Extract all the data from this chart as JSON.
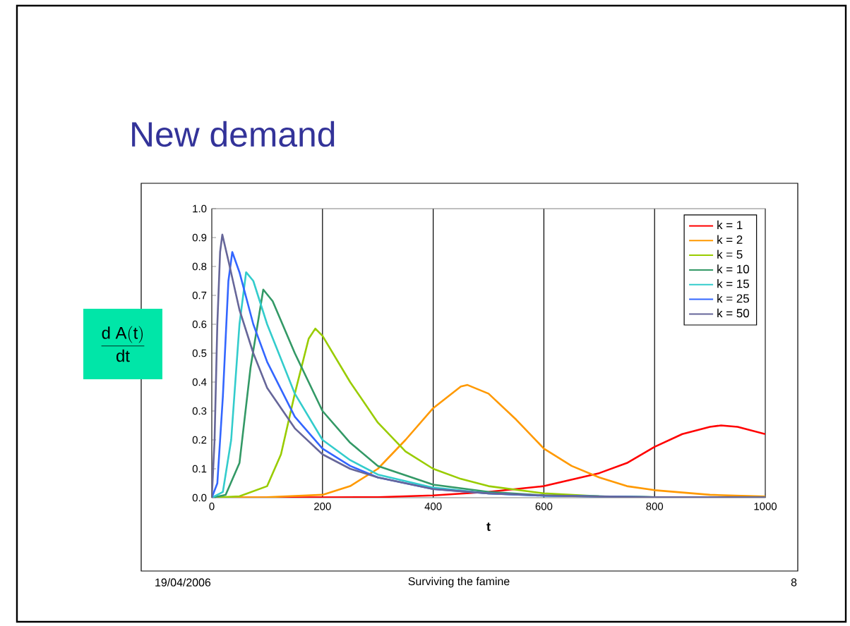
{
  "chart_data": {
    "type": "line",
    "title": "New demand",
    "xlabel": "t",
    "ylabel": "\\frac{\\mathrm{d\\;A(t)}}{\\mathrm{dt}}",
    "annotations": [
      "19/04/2006",
      "Surviving the famine",
      "8"
    ],
    "xlim": [
      0,
      1000
    ],
    "ylim": [
      0,
      1
    ],
    "xticks": [
      0,
      200,
      400,
      600,
      800,
      1000
    ],
    "yticks": [
      {
        "value": 0,
        "label": "0.0"
      },
      {
        "value": 0.1,
        "label": "0.1"
      },
      {
        "value": 0.2,
        "label": "0.2"
      },
      {
        "value": 0.3,
        "label": "0.3"
      },
      {
        "value": 0.4,
        "label": "0.4"
      },
      {
        "value": 0.5,
        "label": "0.5"
      },
      {
        "value": 0.6,
        "label": "0.6"
      },
      {
        "value": 0.7,
        "label": "0.7"
      },
      {
        "value": 0.8,
        "label": "0.8"
      },
      {
        "value": 0.9,
        "label": "0.9"
      },
      {
        "value": 1,
        "label": "1.0"
      }
    ],
    "grid": "x",
    "legend": "top right",
    "marker": "none",
    "line_style": "solid",
    "series": [
      {
        "name": "k = 1",
        "color": "#ff0000",
        "x": [
          0,
          300,
          400,
          500,
          600,
          700,
          750,
          800,
          850,
          900,
          920,
          950,
          1000
        ],
        "values": [
          0,
          0.002,
          0.008,
          0.02,
          0.04,
          0.085,
          0.12,
          0.176,
          0.22,
          0.245,
          0.25,
          0.245,
          0.22
        ]
      },
      {
        "name": "k = 2",
        "color": "#ff9900",
        "x": [
          0,
          100,
          200,
          250,
          300,
          350,
          400,
          450,
          462,
          500,
          550,
          600,
          650,
          700,
          750,
          800,
          900,
          1000
        ],
        "values": [
          0,
          0.002,
          0.01,
          0.04,
          0.1,
          0.2,
          0.31,
          0.385,
          0.39,
          0.36,
          0.27,
          0.17,
          0.11,
          0.07,
          0.04,
          0.026,
          0.01,
          0.004
        ]
      },
      {
        "name": "k = 5",
        "color": "#99cc00",
        "x": [
          0,
          50,
          100,
          125,
          150,
          175,
          187,
          200,
          250,
          300,
          350,
          400,
          450,
          500,
          600,
          700,
          800,
          1000
        ],
        "values": [
          0,
          0.005,
          0.04,
          0.15,
          0.36,
          0.55,
          0.585,
          0.56,
          0.4,
          0.26,
          0.16,
          0.1,
          0.065,
          0.04,
          0.015,
          0.005,
          0.002,
          0
        ]
      },
      {
        "name": "k = 10",
        "color": "#339966",
        "x": [
          0,
          25,
          50,
          70,
          93,
          110,
          150,
          200,
          250,
          300,
          400,
          500,
          600,
          800,
          1000
        ],
        "values": [
          0,
          0.01,
          0.12,
          0.45,
          0.72,
          0.68,
          0.5,
          0.3,
          0.19,
          0.11,
          0.045,
          0.02,
          0.008,
          0.002,
          0
        ]
      },
      {
        "name": "k = 15",
        "color": "#33cccc",
        "x": [
          0,
          20,
          35,
          50,
          62,
          75,
          100,
          150,
          200,
          250,
          300,
          400,
          500,
          600,
          800,
          1000
        ],
        "values": [
          0,
          0.02,
          0.2,
          0.6,
          0.78,
          0.75,
          0.6,
          0.36,
          0.2,
          0.13,
          0.08,
          0.035,
          0.015,
          0.007,
          0.002,
          0
        ]
      },
      {
        "name": "k = 25",
        "color": "#3366ff",
        "x": [
          0,
          10,
          20,
          30,
          37,
          50,
          75,
          100,
          150,
          200,
          250,
          300,
          400,
          500,
          600,
          800,
          1000
        ],
        "values": [
          0,
          0.05,
          0.35,
          0.75,
          0.85,
          0.78,
          0.6,
          0.47,
          0.28,
          0.17,
          0.11,
          0.07,
          0.03,
          0.015,
          0.007,
          0.002,
          0
        ]
      },
      {
        "name": "k = 50",
        "color": "#666699",
        "x": [
          0,
          5,
          10,
          15,
          19,
          30,
          50,
          75,
          100,
          150,
          200,
          250,
          300,
          400,
          500,
          600,
          700,
          800,
          1000
        ],
        "values": [
          0,
          0.2,
          0.6,
          0.85,
          0.91,
          0.82,
          0.65,
          0.5,
          0.38,
          0.24,
          0.15,
          0.1,
          0.07,
          0.03,
          0.015,
          0.008,
          0.004,
          0.002,
          0.001
        ]
      }
    ]
  }
}
